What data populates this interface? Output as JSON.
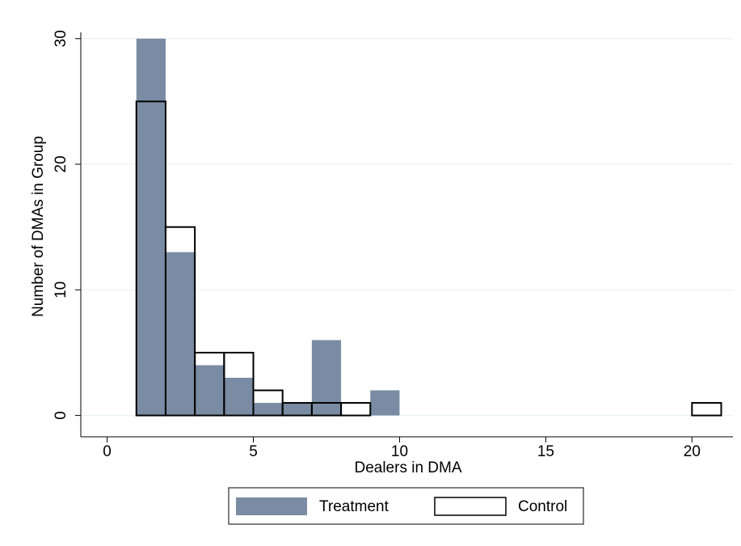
{
  "chart_data": {
    "type": "histogram",
    "x_label": "Dealers in DMA",
    "y_label": "Number of DMAs in Group",
    "bins": [
      1,
      2,
      3,
      4,
      5,
      6,
      7,
      8,
      9,
      10,
      11,
      12,
      13,
      14,
      15,
      16,
      17,
      18,
      19,
      20,
      21
    ],
    "series": [
      {
        "name": "Treatment",
        "color": "#7a8ca3",
        "fill": true,
        "values": [
          30,
          13,
          4,
          3,
          1,
          1,
          6,
          0,
          2,
          0,
          0,
          0,
          0,
          0,
          0,
          0,
          0,
          0,
          0,
          0
        ]
      },
      {
        "name": "Control",
        "color": "#000000",
        "fill": false,
        "values": [
          25,
          15,
          5,
          5,
          2,
          1,
          1,
          1,
          0,
          0,
          0,
          0,
          0,
          0,
          0,
          0,
          0,
          0,
          0,
          1
        ]
      }
    ],
    "xlim": [
      -0.9,
      21.4
    ],
    "ylim": [
      -1.7,
      30.5
    ],
    "xticks": [
      0,
      5,
      10,
      15,
      20
    ],
    "yticks": [
      0,
      10,
      20,
      30
    ],
    "grid": true,
    "legend": "bottom"
  }
}
